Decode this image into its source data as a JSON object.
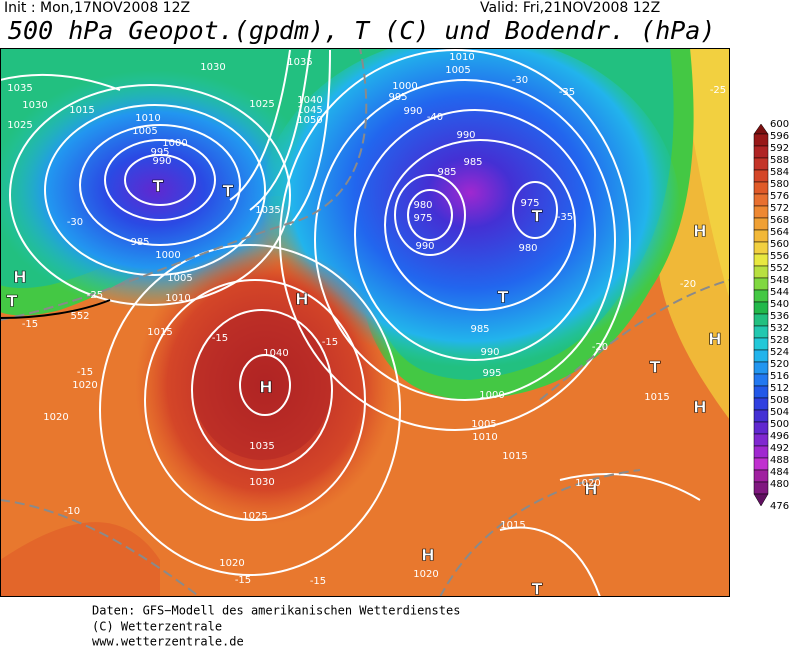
{
  "header": {
    "init": "Init : Mon,17NOV2008  12Z",
    "valid": "Valid: Fri,21NOV2008  12Z",
    "title": "500 hPa Geopot.(gpdm), T (C) und Bodendr. (hPa)"
  },
  "map": {
    "labels": [
      "1035",
      "1030",
      "1025",
      "1030",
      "1035",
      "1015",
      "1010",
      "1005",
      "1000",
      "995",
      "990",
      "T",
      "T",
      "-30",
      "985",
      "1000",
      "1005",
      "1010",
      "1015",
      "1020",
      "-15",
      "H",
      "T",
      "-25",
      "-15",
      "552",
      "1040",
      "H",
      "H",
      "-15",
      "-15",
      "1035",
      "1030",
      "1025",
      "1020",
      "-15",
      "-15",
      "1020",
      "-10",
      "990",
      "985",
      "985",
      "980",
      "975",
      "990",
      "975",
      "T",
      "-35",
      "980",
      "T",
      "985",
      "990",
      "995",
      "1000",
      "1005",
      "1010",
      "1015",
      "H",
      "T",
      "H",
      "H",
      "1015",
      "H",
      "1020",
      "1015",
      "H",
      "1020",
      "T",
      "-20",
      "-20",
      "-25",
      "-35",
      "-30",
      "1010",
      "1005",
      "1000",
      "995",
      "-40",
      "990",
      "1025",
      "1035",
      "1040",
      "1045",
      "1050"
    ]
  },
  "legend": {
    "entries": [
      {
        "value": 600,
        "color": "#7a1010"
      },
      {
        "value": 596,
        "color": "#981818"
      },
      {
        "value": 592,
        "color": "#b02424"
      },
      {
        "value": 588,
        "color": "#c43428"
      },
      {
        "value": 584,
        "color": "#d44628"
      },
      {
        "value": 580,
        "color": "#e05a28"
      },
      {
        "value": 576,
        "color": "#e87030"
      },
      {
        "value": 572,
        "color": "#ee8832"
      },
      {
        "value": 568,
        "color": "#f0a034"
      },
      {
        "value": 564,
        "color": "#f2b838"
      },
      {
        "value": 560,
        "color": "#f2d040"
      },
      {
        "value": 556,
        "color": "#e8e840"
      },
      {
        "value": 552,
        "color": "#b8e040"
      },
      {
        "value": 548,
        "color": "#80d840"
      },
      {
        "value": 544,
        "color": "#44c844"
      },
      {
        "value": 540,
        "color": "#22b84a"
      },
      {
        "value": 536,
        "color": "#22c080"
      },
      {
        "value": 532,
        "color": "#22c8b0"
      },
      {
        "value": 528,
        "color": "#22c8d8"
      },
      {
        "value": 524,
        "color": "#22b4ec"
      },
      {
        "value": 520,
        "color": "#2296f0"
      },
      {
        "value": 516,
        "color": "#2278f0"
      },
      {
        "value": 512,
        "color": "#2258e8"
      },
      {
        "value": 508,
        "color": "#3040e0"
      },
      {
        "value": 504,
        "color": "#4430d4"
      },
      {
        "value": 500,
        "color": "#6028d0"
      },
      {
        "value": 496,
        "color": "#8028d0"
      },
      {
        "value": 492,
        "color": "#a028d0"
      },
      {
        "value": 488,
        "color": "#c030d0"
      },
      {
        "value": 484,
        "color": "#a020a0"
      },
      {
        "value": 480,
        "color": "#801880"
      },
      {
        "value": 476,
        "color": "#601060"
      }
    ]
  },
  "footer": {
    "lines": [
      "Daten: GFS−Modell des amerikanischen Wetterdienstes",
      "(C) Wetterzentrale",
      "www.wetterzentrale.de"
    ]
  }
}
